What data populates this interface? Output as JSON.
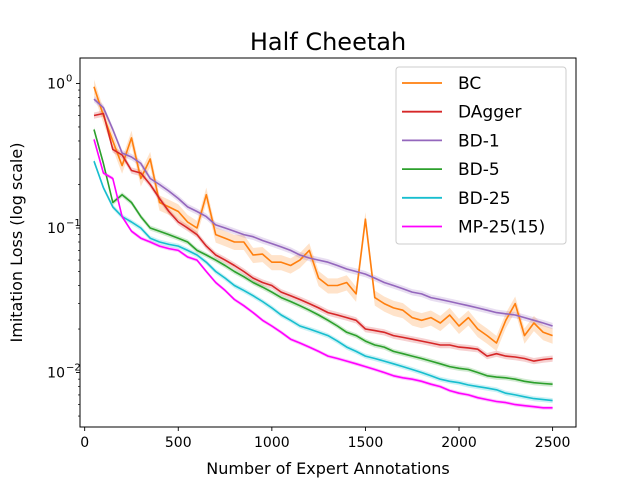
{
  "chart_data": {
    "type": "line",
    "title": "Half Cheetah",
    "xlabel": "Number of Expert Annotations",
    "ylabel": "Imitation Loss (log scale)",
    "yscale": "log",
    "xlim": [
      -25,
      2625
    ],
    "ylim": [
      0.0042,
      1.5
    ],
    "xticks": [
      0,
      500,
      1000,
      1500,
      2000,
      2500
    ],
    "xtick_labels": [
      "0",
      "500",
      "1000",
      "1500",
      "2000",
      "2500"
    ],
    "yticks": [
      0.01,
      0.1,
      1
    ],
    "ytick_labels": [
      [
        "10",
        "−2"
      ],
      [
        "10",
        "−1"
      ],
      [
        "10",
        "0"
      ]
    ],
    "legend_position": "top-right",
    "x": [
      50,
      100,
      150,
      200,
      250,
      300,
      350,
      400,
      450,
      500,
      550,
      600,
      650,
      700,
      750,
      800,
      850,
      900,
      950,
      1000,
      1050,
      1100,
      1150,
      1200,
      1250,
      1300,
      1350,
      1400,
      1450,
      1500,
      1550,
      1600,
      1650,
      1700,
      1750,
      1800,
      1850,
      1900,
      1950,
      2000,
      2050,
      2100,
      2150,
      2200,
      2250,
      2300,
      2350,
      2400,
      2450,
      2500
    ],
    "series": [
      {
        "name": "BC",
        "color": "#ff7f0e",
        "band": 0.12,
        "values": [
          0.95,
          0.6,
          0.4,
          0.27,
          0.42,
          0.22,
          0.3,
          0.15,
          0.14,
          0.13,
          0.11,
          0.1,
          0.17,
          0.09,
          0.085,
          0.08,
          0.08,
          0.065,
          0.066,
          0.058,
          0.058,
          0.055,
          0.06,
          0.07,
          0.045,
          0.04,
          0.04,
          0.042,
          0.035,
          0.115,
          0.033,
          0.03,
          0.028,
          0.027,
          0.024,
          0.023,
          0.024,
          0.022,
          0.025,
          0.021,
          0.024,
          0.02,
          0.018,
          0.016,
          0.023,
          0.03,
          0.018,
          0.022,
          0.019,
          0.018
        ]
      },
      {
        "name": "DAgger",
        "color": "#d62728",
        "band": 0.05,
        "values": [
          0.6,
          0.62,
          0.35,
          0.32,
          0.25,
          0.24,
          0.2,
          0.16,
          0.13,
          0.11,
          0.1,
          0.09,
          0.075,
          0.065,
          0.06,
          0.055,
          0.05,
          0.045,
          0.042,
          0.04,
          0.036,
          0.034,
          0.032,
          0.03,
          0.028,
          0.026,
          0.025,
          0.024,
          0.023,
          0.02,
          0.0195,
          0.019,
          0.018,
          0.0175,
          0.017,
          0.0165,
          0.016,
          0.0155,
          0.0155,
          0.015,
          0.0148,
          0.0145,
          0.013,
          0.0135,
          0.013,
          0.0128,
          0.0125,
          0.012,
          0.0123,
          0.0125
        ]
      },
      {
        "name": "BD-1",
        "color": "#9467bd",
        "band": 0.05,
        "values": [
          0.78,
          0.68,
          0.48,
          0.33,
          0.31,
          0.28,
          0.22,
          0.2,
          0.18,
          0.16,
          0.14,
          0.13,
          0.12,
          0.105,
          0.1,
          0.095,
          0.09,
          0.087,
          0.082,
          0.078,
          0.074,
          0.07,
          0.065,
          0.062,
          0.06,
          0.058,
          0.055,
          0.052,
          0.05,
          0.048,
          0.045,
          0.042,
          0.04,
          0.038,
          0.036,
          0.035,
          0.033,
          0.032,
          0.031,
          0.03,
          0.029,
          0.028,
          0.027,
          0.026,
          0.0255,
          0.025,
          0.024,
          0.023,
          0.022,
          0.021
        ]
      },
      {
        "name": "BD-5",
        "color": "#2ca02c",
        "band": 0.04,
        "values": [
          0.48,
          0.28,
          0.15,
          0.17,
          0.15,
          0.12,
          0.1,
          0.095,
          0.09,
          0.085,
          0.08,
          0.07,
          0.065,
          0.06,
          0.055,
          0.05,
          0.046,
          0.042,
          0.039,
          0.036,
          0.033,
          0.031,
          0.029,
          0.027,
          0.025,
          0.023,
          0.021,
          0.019,
          0.018,
          0.0165,
          0.0155,
          0.015,
          0.014,
          0.0135,
          0.013,
          0.0125,
          0.012,
          0.0115,
          0.011,
          0.0107,
          0.0105,
          0.01,
          0.0095,
          0.0093,
          0.0092,
          0.009,
          0.0087,
          0.0085,
          0.0084,
          0.0083
        ]
      },
      {
        "name": "BD-25",
        "color": "#17becf",
        "band": 0.04,
        "values": [
          0.29,
          0.19,
          0.14,
          0.12,
          0.11,
          0.1,
          0.085,
          0.08,
          0.077,
          0.075,
          0.07,
          0.065,
          0.058,
          0.05,
          0.045,
          0.04,
          0.037,
          0.034,
          0.031,
          0.028,
          0.025,
          0.023,
          0.021,
          0.02,
          0.019,
          0.018,
          0.0165,
          0.015,
          0.014,
          0.013,
          0.0125,
          0.012,
          0.0115,
          0.011,
          0.0105,
          0.01,
          0.0095,
          0.009,
          0.0087,
          0.0085,
          0.0082,
          0.008,
          0.0078,
          0.0076,
          0.0072,
          0.007,
          0.0068,
          0.0066,
          0.0065,
          0.0064
        ]
      },
      {
        "name": "MP-25(15)",
        "color": "#ff00ff",
        "band": 0.03,
        "values": [
          0.41,
          0.24,
          0.22,
          0.12,
          0.095,
          0.085,
          0.08,
          0.075,
          0.072,
          0.07,
          0.063,
          0.06,
          0.05,
          0.042,
          0.037,
          0.032,
          0.029,
          0.026,
          0.023,
          0.021,
          0.019,
          0.017,
          0.016,
          0.015,
          0.014,
          0.013,
          0.0125,
          0.012,
          0.0115,
          0.011,
          0.0105,
          0.01,
          0.0095,
          0.0092,
          0.009,
          0.0087,
          0.0083,
          0.008,
          0.0075,
          0.0072,
          0.007,
          0.0067,
          0.0065,
          0.0063,
          0.0062,
          0.006,
          0.0059,
          0.0058,
          0.0057,
          0.0057
        ]
      }
    ]
  }
}
